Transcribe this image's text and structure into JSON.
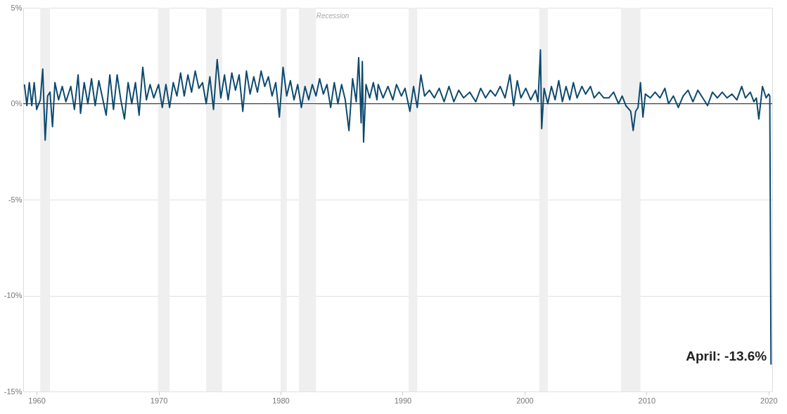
{
  "chart_data": {
    "type": "line",
    "x": [
      1959.0,
      1959.2,
      1959.4,
      1959.6,
      1959.8,
      1960.0,
      1960.3,
      1960.5,
      1960.7,
      1960.9,
      1961.1,
      1961.3,
      1961.5,
      1961.8,
      1962.1,
      1962.4,
      1962.8,
      1963.1,
      1963.4,
      1963.6,
      1963.9,
      1964.2,
      1964.5,
      1964.8,
      1965.1,
      1965.4,
      1965.7,
      1966.0,
      1966.3,
      1966.6,
      1966.9,
      1967.2,
      1967.5,
      1967.8,
      1968.1,
      1968.4,
      1968.7,
      1969.0,
      1969.3,
      1969.6,
      1970.0,
      1970.3,
      1970.6,
      1970.9,
      1971.2,
      1971.5,
      1971.8,
      1972.1,
      1972.4,
      1972.7,
      1973.0,
      1973.3,
      1973.6,
      1973.9,
      1974.2,
      1974.5,
      1974.8,
      1975.1,
      1975.4,
      1975.7,
      1976.0,
      1976.3,
      1976.6,
      1976.9,
      1977.2,
      1977.5,
      1977.8,
      1978.1,
      1978.4,
      1978.7,
      1979.0,
      1979.3,
      1979.6,
      1979.9,
      1980.2,
      1980.5,
      1980.8,
      1981.1,
      1981.4,
      1981.7,
      1982.0,
      1982.3,
      1982.6,
      1982.9,
      1983.2,
      1983.5,
      1983.8,
      1984.1,
      1984.4,
      1984.7,
      1985.0,
      1985.3,
      1985.6,
      1985.9,
      1986.2,
      1986.4,
      1986.6,
      1986.7,
      1986.8,
      1987.0,
      1987.3,
      1987.6,
      1987.9,
      1988.0,
      1988.4,
      1988.8,
      1989.2,
      1989.5,
      1989.9,
      1990.2,
      1990.6,
      1990.9,
      1991.2,
      1991.5,
      1991.8,
      1992.2,
      1992.6,
      1993.0,
      1993.4,
      1993.8,
      1994.2,
      1994.6,
      1995.0,
      1995.5,
      1996.0,
      1996.4,
      1996.8,
      1997.2,
      1997.6,
      1998.0,
      1998.4,
      1998.8,
      1999.1,
      1999.4,
      1999.7,
      2000.1,
      2000.5,
      2000.9,
      2001.1,
      2001.3,
      2001.4,
      2001.6,
      2001.9,
      2002.2,
      2002.5,
      2002.8,
      2003.1,
      2003.4,
      2003.7,
      2004.0,
      2004.3,
      2004.7,
      2005.0,
      2005.4,
      2005.7,
      2006.1,
      2006.5,
      2006.9,
      2007.3,
      2007.7,
      2008.0,
      2008.3,
      2008.7,
      2008.9,
      2009.1,
      2009.3,
      2009.5,
      2009.7,
      2009.9,
      2010.3,
      2010.7,
      2011.1,
      2011.5,
      2011.8,
      2012.2,
      2012.6,
      2013.0,
      2013.4,
      2013.8,
      2014.2,
      2014.6,
      2015.0,
      2015.4,
      2015.8,
      2016.2,
      2016.6,
      2017.0,
      2017.4,
      2017.8,
      2018.1,
      2018.5,
      2018.8,
      2019.0,
      2019.2,
      2019.5,
      2019.8,
      2020.0,
      2020.1,
      2020.2
    ],
    "series": [
      {
        "color": "#0d4a6e",
        "values": [
          1.0,
          -0.1,
          1.1,
          -0.1,
          1.1,
          -0.3,
          0.2,
          1.8,
          -1.9,
          0.4,
          0.6,
          -1.2,
          1.1,
          0.2,
          0.9,
          0.1,
          0.9,
          -0.3,
          1.5,
          -0.5,
          1.1,
          0.0,
          1.3,
          -0.1,
          1.2,
          0.3,
          -0.6,
          1.5,
          -0.3,
          1.5,
          0.2,
          -0.8,
          1.1,
          0.0,
          1.1,
          -0.6,
          1.9,
          0.2,
          1.0,
          0.3,
          1.0,
          -0.2,
          1.0,
          -0.2,
          1.1,
          0.4,
          1.6,
          0.4,
          1.5,
          0.6,
          1.7,
          0.8,
          1.1,
          0.0,
          1.4,
          -0.3,
          2.3,
          0.3,
          1.5,
          0.2,
          1.6,
          0.7,
          1.5,
          -0.4,
          1.7,
          0.5,
          1.4,
          0.6,
          1.7,
          0.9,
          1.4,
          0.4,
          1.1,
          -0.7,
          1.9,
          0.4,
          1.2,
          0.2,
          1.0,
          -0.2,
          0.9,
          0.2,
          1.0,
          0.4,
          1.3,
          0.5,
          1.0,
          -0.2,
          1.1,
          0.0,
          1.0,
          0.2,
          -1.4,
          1.3,
          0.1,
          2.4,
          -1.0,
          2.2,
          -2.0,
          1.0,
          0.3,
          1.1,
          0.2,
          1.0,
          0.3,
          0.9,
          0.2,
          1.0,
          0.4,
          0.8,
          -0.4,
          0.9,
          -0.2,
          1.5,
          0.4,
          0.7,
          0.3,
          0.8,
          0.1,
          0.9,
          0.1,
          0.7,
          0.3,
          0.6,
          0.1,
          0.8,
          0.3,
          0.7,
          0.4,
          0.9,
          0.3,
          1.5,
          -0.1,
          1.2,
          0.3,
          0.8,
          0.2,
          0.7,
          0.1,
          2.8,
          -1.3,
          0.8,
          0.0,
          0.9,
          0.2,
          1.2,
          0.1,
          0.9,
          0.2,
          1.1,
          0.3,
          0.9,
          0.5,
          0.9,
          0.3,
          0.6,
          0.3,
          0.3,
          0.6,
          0.0,
          0.4,
          -0.1,
          -0.4,
          -1.4,
          -0.4,
          -0.2,
          1.1,
          -0.7,
          0.5,
          0.3,
          0.6,
          0.3,
          0.8,
          0.0,
          0.4,
          -0.2,
          0.4,
          0.7,
          0.1,
          0.7,
          0.3,
          -0.1,
          0.6,
          0.3,
          0.6,
          0.3,
          0.5,
          0.2,
          0.9,
          0.3,
          0.6,
          0.1,
          0.3,
          -0.8,
          0.9,
          0.3,
          0.5,
          0.4,
          -13.6
        ]
      }
    ],
    "xlim": [
      1958.9,
      2020.3
    ],
    "xticks": [
      1960,
      1970,
      1980,
      1990,
      2000,
      2010,
      2020
    ],
    "ylim": [
      -15,
      5
    ],
    "yticks": [
      {
        "value": 5,
        "label": "5%"
      },
      {
        "value": 0,
        "label": "0%"
      },
      {
        "value": -5,
        "label": "-5%"
      },
      {
        "value": -10,
        "label": "-10%"
      },
      {
        "value": -15,
        "label": "-15%"
      }
    ],
    "grid": "y",
    "marker": "none",
    "line_style": "solid",
    "bands": [
      {
        "axis": "x",
        "from": 1960.3,
        "to": 1961.1,
        "color": "#efefef"
      },
      {
        "axis": "x",
        "from": 1969.95,
        "to": 1970.9,
        "color": "#efefef"
      },
      {
        "axis": "x",
        "from": 1973.9,
        "to": 1975.2,
        "color": "#efefef"
      },
      {
        "axis": "x",
        "from": 1980.0,
        "to": 1980.5,
        "color": "#efefef"
      },
      {
        "axis": "x",
        "from": 1981.5,
        "to": 1982.9,
        "color": "#efefef"
      },
      {
        "axis": "x",
        "from": 1990.5,
        "to": 1991.2,
        "color": "#efefef"
      },
      {
        "axis": "x",
        "from": 2001.2,
        "to": 2001.9,
        "color": "#efefef"
      },
      {
        "axis": "x",
        "from": 2007.9,
        "to": 2009.5,
        "color": "#efefef"
      }
    ],
    "ref_lines": [
      {
        "axis": "y",
        "value": 0,
        "color": "#333333"
      }
    ],
    "annotations": [
      "Recession",
      {
        "text": "April: -13.6%",
        "x": 2020.2,
        "y": -13.6
      }
    ]
  }
}
